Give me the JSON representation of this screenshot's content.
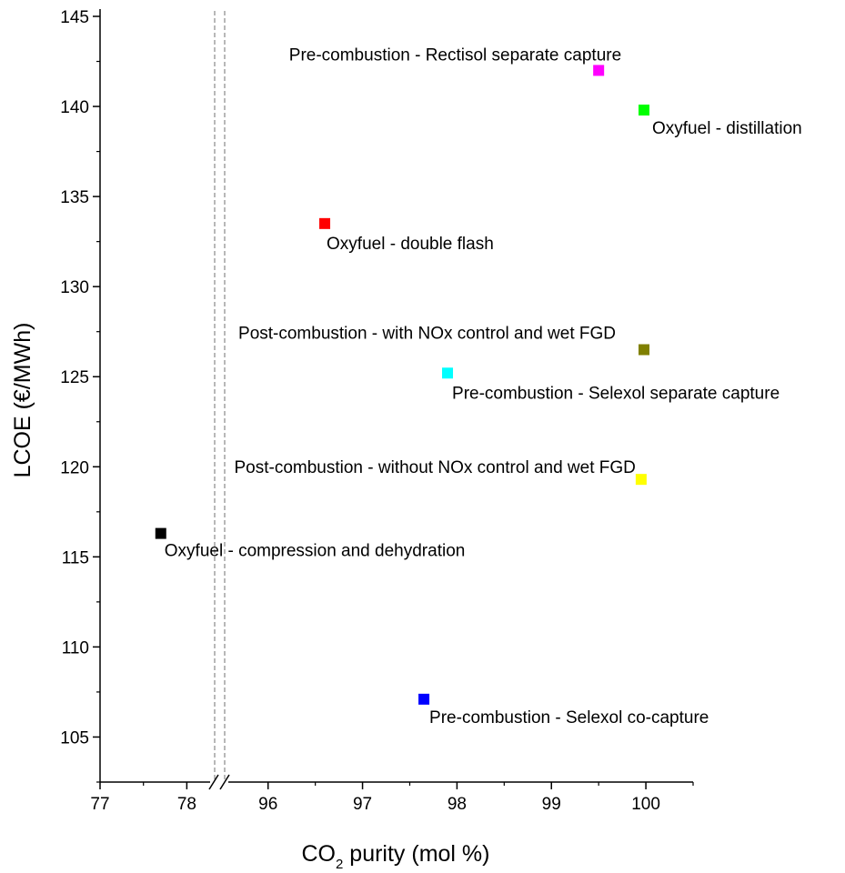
{
  "chart_data": {
    "type": "scatter",
    "title": "",
    "xlabel_main": "CO",
    "xlabel_sub": "2",
    "xlabel_rest": " purity (mol %)",
    "ylabel": "LCOE (€/MWh)",
    "ylim": [
      102.5,
      145
    ],
    "x_axis_break": {
      "low_segment": [
        77,
        78.3
      ],
      "high_segment": [
        95.55,
        100.5
      ]
    },
    "x_ticks": [
      77,
      78,
      96,
      97,
      98,
      99,
      100
    ],
    "y_ticks": [
      105,
      110,
      115,
      120,
      125,
      130,
      135,
      140,
      145
    ],
    "grid": false,
    "points": [
      {
        "x": 77.7,
        "y": 116.3,
        "color": "#000000",
        "label": "Oxyfuel - compression and dehydration",
        "label_anchor": "start"
      },
      {
        "x": 96.6,
        "y": 133.5,
        "color": "#ff0000",
        "label": "Oxyfuel - double flash",
        "label_anchor": "start"
      },
      {
        "x": 99.98,
        "y": 139.8,
        "color": "#00ff00",
        "label": "Oxyfuel - distillation",
        "label_anchor": "start"
      },
      {
        "x": 99.5,
        "y": 142.0,
        "color": "#ff00ff",
        "label": "Pre-combustion - Rectisol separate capture",
        "label_anchor": "end"
      },
      {
        "x": 97.9,
        "y": 125.2,
        "color": "#00ffff",
        "label": "Pre-combustion - Selexol separate capture",
        "label_anchor": "start"
      },
      {
        "x": 97.65,
        "y": 107.1,
        "color": "#0000ff",
        "label": "Pre-combustion - Selexol co-capture",
        "label_anchor": "start"
      },
      {
        "x": 99.98,
        "y": 126.5,
        "color": "#808000",
        "label": "Post-combustion - with NOx control and wet FGD",
        "label_anchor": "end"
      },
      {
        "x": 99.95,
        "y": 119.3,
        "color": "#ffff00",
        "label": "Post-combustion - without NOx control and wet FGD",
        "label_anchor": "end"
      }
    ]
  }
}
